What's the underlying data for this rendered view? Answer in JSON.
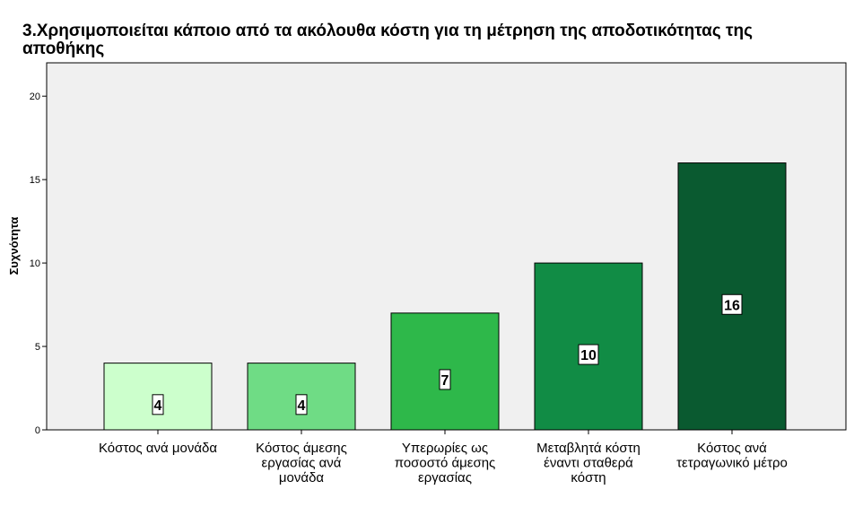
{
  "chart_data": {
    "type": "bar",
    "title": "3.Χρησιμοποιείται κάποιο από τα ακόλουθα κόστη για τη μέτρηση της αποδοτικότητας της αποθήκης",
    "ylabel": "Συχνότητα",
    "xlabel": "",
    "ylim": [
      0,
      22
    ],
    "yticks": [
      0,
      5,
      10,
      15,
      20
    ],
    "categories": [
      [
        "Κόστος ανά μονάδα"
      ],
      [
        "Κόστος άμεσης",
        "εργασίας ανά",
        "μονάδα"
      ],
      [
        "Υπερωρίες ως",
        "ποσοστό άμεσης",
        "εργασίας"
      ],
      [
        "Μεταβλητά κόστη",
        "έναντι  σταθερά",
        "κόστη"
      ],
      [
        "Κόστος ανά",
        "τετραγωνικό μέτρο"
      ]
    ],
    "values": [
      4,
      4,
      7,
      10,
      16
    ],
    "data_labels": [
      "4",
      "4",
      "7",
      "10",
      "16"
    ],
    "colors": [
      "#ccffcc",
      "#6fdc85",
      "#2eb84a",
      "#118c45",
      "#0a5a30"
    ],
    "plot_background": "#f0f0f0",
    "grid": false,
    "legend": "none"
  }
}
